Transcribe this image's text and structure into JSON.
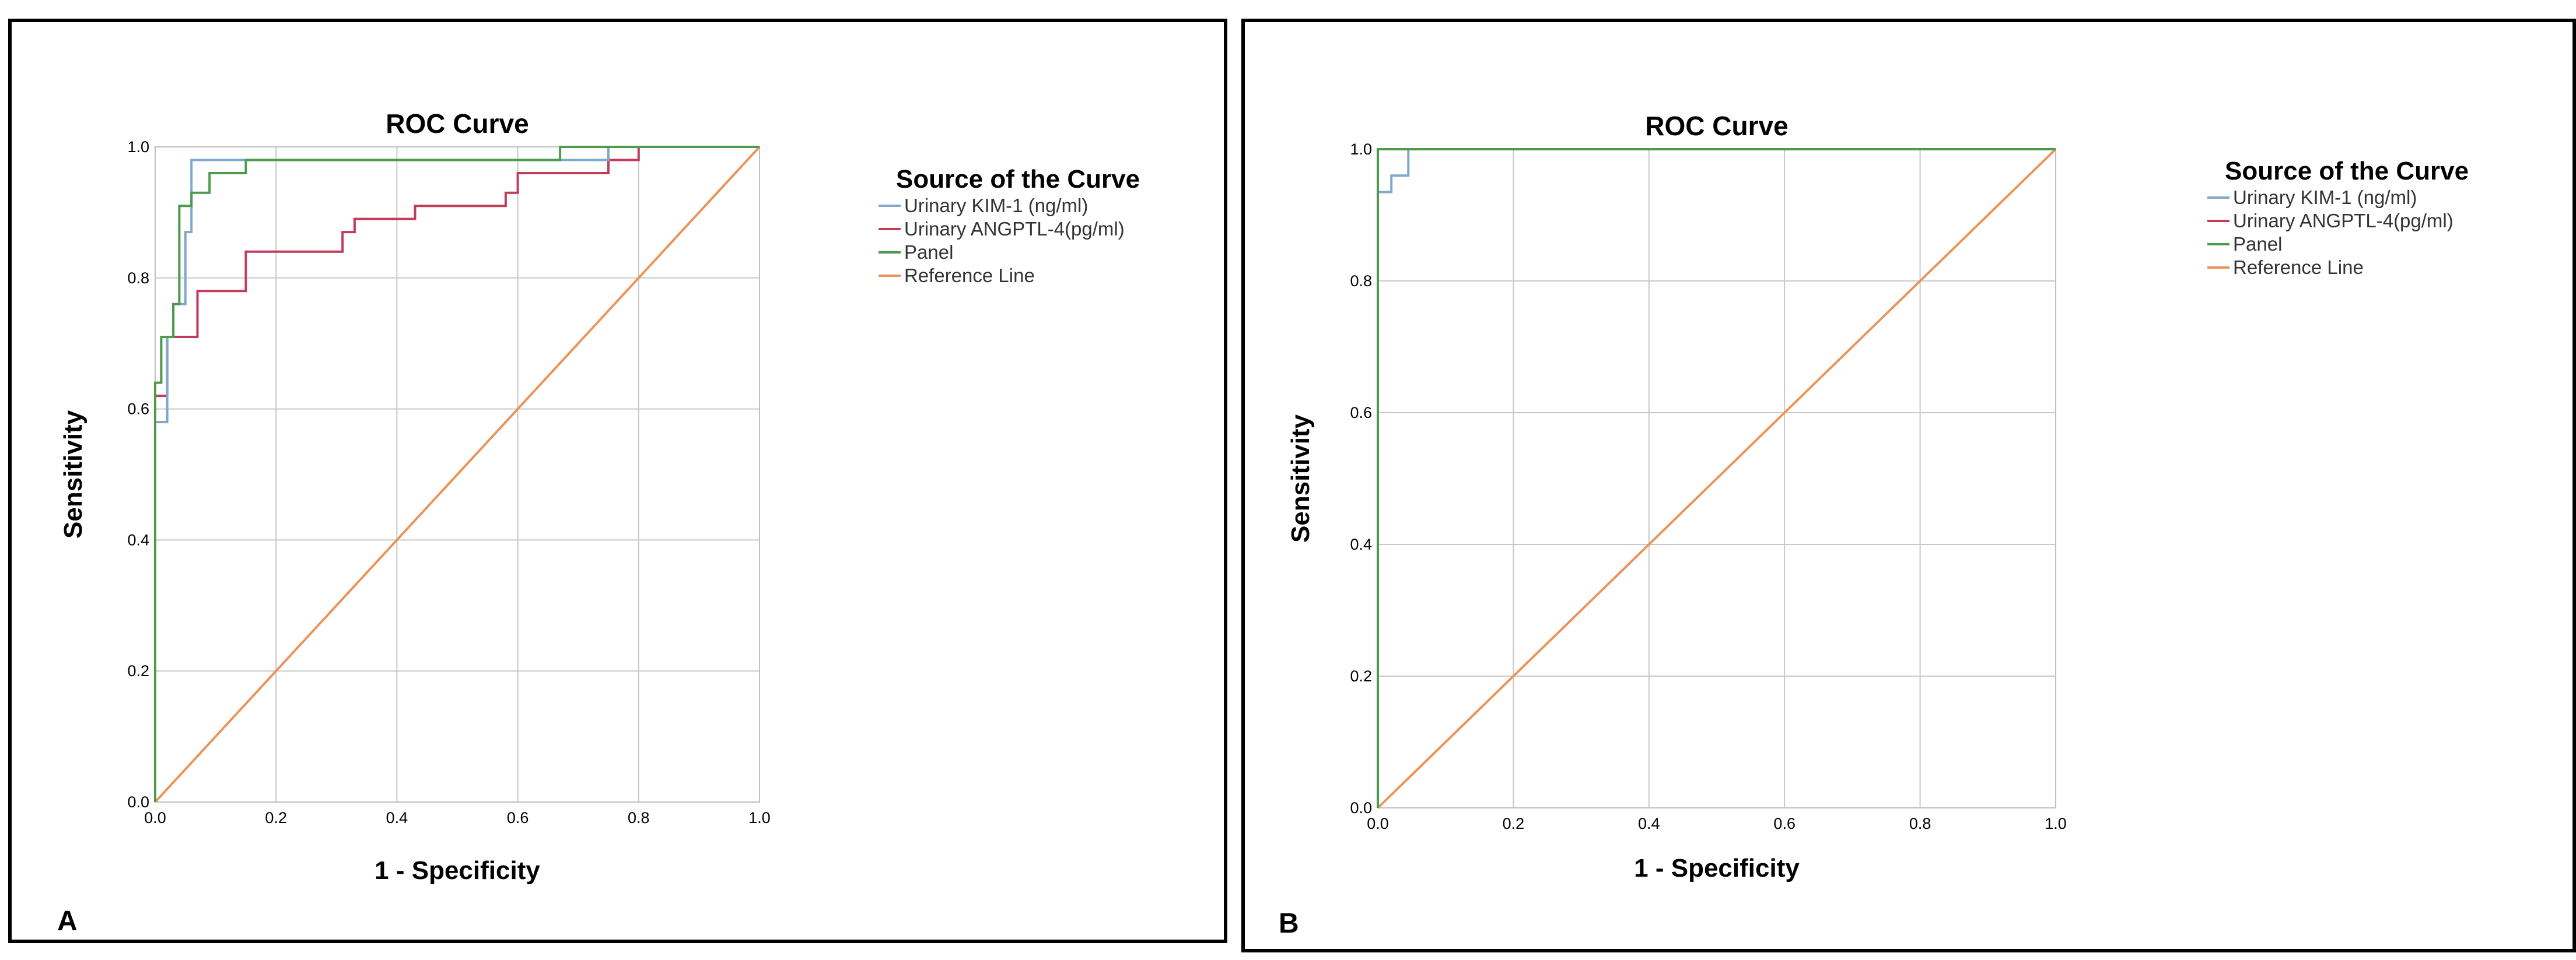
{
  "chart_data": [
    {
      "panel_label": "A",
      "type": "line",
      "title": "ROC Curve",
      "xlabel": "1 - Specificity",
      "ylabel": "Sensitivity",
      "xlim": [
        0,
        1
      ],
      "ylim": [
        0,
        1
      ],
      "xticks": [
        "0.0",
        "0.2",
        "0.4",
        "0.6",
        "0.8",
        "1.0"
      ],
      "yticks": [
        "0.0",
        "0.2",
        "0.4",
        "0.6",
        "0.8",
        "1.0"
      ],
      "grid": true,
      "legend": {
        "title": "Source of the Curve",
        "placement": "right",
        "entries": [
          "Urinary KIM-1 (ng/ml)",
          "Urinary ANGPTL-4(pg/ml)",
          "Panel",
          "Reference Line"
        ]
      },
      "series": [
        {
          "name": "Urinary KIM-1 (ng/ml)",
          "color": "#7fa8cc",
          "x": [
            0,
            0,
            0.02,
            0.02,
            0.03,
            0.03,
            0.05,
            0.05,
            0.06,
            0.06,
            0.15,
            0.15,
            0.75,
            0.75,
            0.8,
            0.8,
            1.0
          ],
          "y": [
            0,
            0.58,
            0.58,
            0.71,
            0.71,
            0.76,
            0.76,
            0.87,
            0.87,
            0.98,
            0.98,
            0.98,
            0.98,
            1.0,
            1.0,
            1.0,
            1.0
          ]
        },
        {
          "name": "Urinary ANGPTL-4(pg/ml)",
          "color": "#c23b5b",
          "x": [
            0,
            0,
            0.02,
            0.02,
            0.05,
            0.05,
            0.07,
            0.07,
            0.15,
            0.15,
            0.31,
            0.31,
            0.33,
            0.33,
            0.43,
            0.43,
            0.58,
            0.58,
            0.6,
            0.6,
            0.75,
            0.75,
            0.8,
            0.8,
            1.0
          ],
          "y": [
            0,
            0.62,
            0.62,
            0.71,
            0.71,
            0.71,
            0.71,
            0.78,
            0.78,
            0.84,
            0.84,
            0.87,
            0.87,
            0.89,
            0.89,
            0.91,
            0.91,
            0.93,
            0.93,
            0.96,
            0.96,
            0.98,
            0.98,
            1.0,
            1.0
          ]
        },
        {
          "name": "Panel",
          "color": "#4c9a4c",
          "x": [
            0,
            0,
            0.01,
            0.01,
            0.03,
            0.03,
            0.04,
            0.04,
            0.06,
            0.06,
            0.07,
            0.07,
            0.09,
            0.09,
            0.15,
            0.15,
            0.67,
            0.67,
            1.0
          ],
          "y": [
            0,
            0.64,
            0.64,
            0.71,
            0.71,
            0.76,
            0.76,
            0.91,
            0.91,
            0.93,
            0.93,
            0.93,
            0.93,
            0.96,
            0.96,
            0.98,
            0.98,
            1.0,
            1.0
          ]
        },
        {
          "name": "Reference Line",
          "color": "#e8955c",
          "x": [
            0,
            1
          ],
          "y": [
            0,
            1
          ]
        }
      ]
    },
    {
      "panel_label": "B",
      "type": "line",
      "title": "ROC Curve",
      "xlabel": "1 - Specificity",
      "ylabel": "Sensitivity",
      "xlim": [
        0,
        1
      ],
      "ylim": [
        0,
        1
      ],
      "xticks": [
        "0.0",
        "0.2",
        "0.4",
        "0.6",
        "0.8",
        "1.0"
      ],
      "yticks": [
        "0.0",
        "0.2",
        "0.4",
        "0.6",
        "0.8",
        "1.0"
      ],
      "grid": true,
      "legend": {
        "title": "Source of the Curve",
        "placement": "right",
        "entries": [
          "Urinary KIM-1 (ng/ml)",
          "Urinary ANGPTL-4(pg/ml)",
          "Panel",
          "Reference Line"
        ]
      },
      "series": [
        {
          "name": "Urinary KIM-1 (ng/ml)",
          "color": "#7fa8cc",
          "x": [
            0,
            0,
            0.02,
            0.02,
            0.045,
            0.045,
            1.0
          ],
          "y": [
            0,
            0.935,
            0.935,
            0.96,
            0.96,
            1.0,
            1.0
          ]
        },
        {
          "name": "Urinary ANGPTL-4(pg/ml)",
          "color": "#c23b5b",
          "x": [
            0,
            0,
            1.0
          ],
          "y": [
            0,
            1.0,
            1.0
          ]
        },
        {
          "name": "Panel",
          "color": "#4c9a4c",
          "x": [
            0,
            0,
            1.0
          ],
          "y": [
            0,
            1.0,
            1.0
          ]
        },
        {
          "name": "Reference Line",
          "color": "#e8955c",
          "x": [
            0,
            1
          ],
          "y": [
            0,
            1
          ]
        }
      ]
    }
  ]
}
